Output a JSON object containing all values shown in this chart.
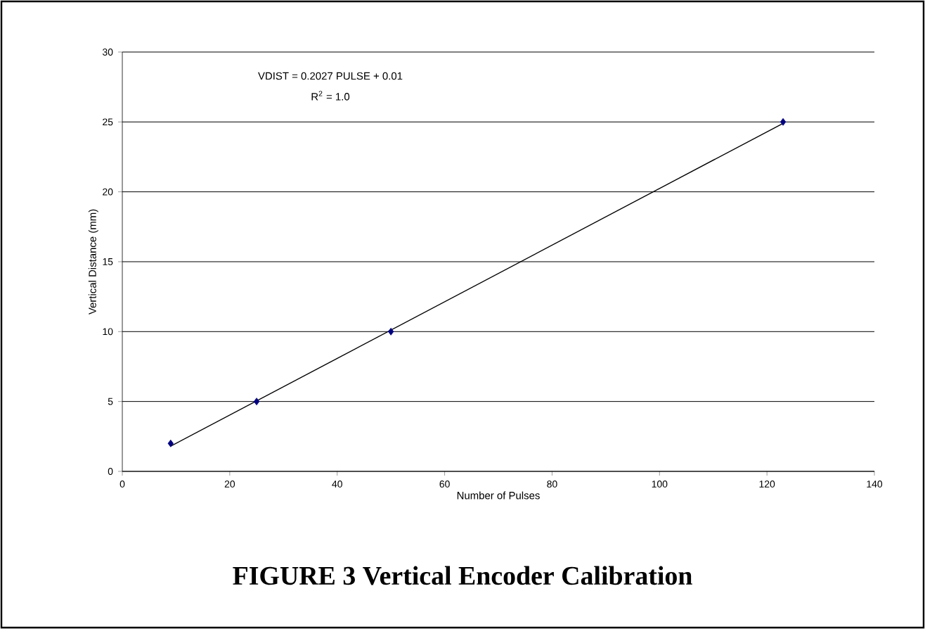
{
  "chart_data": {
    "type": "scatter",
    "title": "FIGURE 3  Vertical Encoder Calibration",
    "xlabel": "Number of Pulses",
    "ylabel": "Vertical Distance (mm)",
    "annotations": [
      "VDIST = 0.2027 PULSE + 0.01",
      "R$^{2}$ = 1.0"
    ],
    "series": [
      {
        "type": "line",
        "x": [
          9,
          123
        ],
        "values": [
          1.8,
          24.9
        ],
        "color": "#000000",
        "marker": "none"
      },
      {
        "x": [
          9,
          25,
          50,
          123
        ],
        "values": [
          2,
          5,
          10,
          25
        ],
        "color": "#000080",
        "marker": "diamond"
      }
    ],
    "xlim": [
      0,
      140
    ],
    "xticks": [
      0,
      20,
      40,
      60,
      80,
      100,
      120,
      140
    ],
    "ylim": [
      0,
      30
    ],
    "yticks": [
      0,
      5,
      10,
      15,
      20,
      25,
      30
    ],
    "grid": "y"
  }
}
